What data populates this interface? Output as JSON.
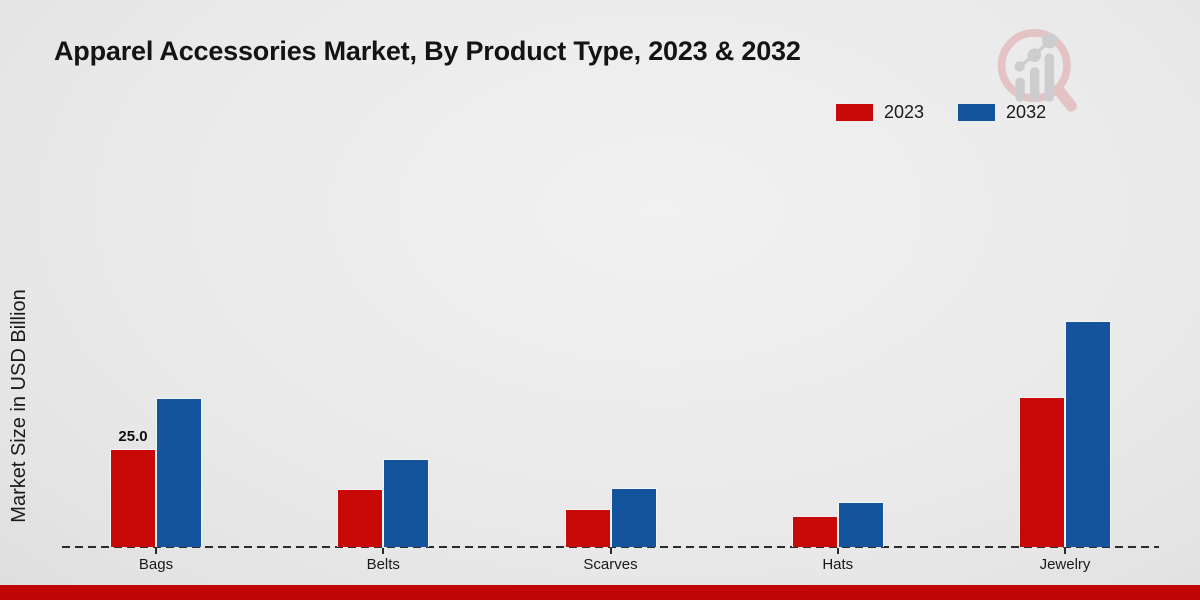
{
  "title": "Apparel Accessories Market, By Product Type, 2023 & 2032",
  "y_axis_label": "Market Size in USD Billion",
  "legend": [
    {
      "label": "2023",
      "color": "#c90808"
    },
    {
      "label": "2032",
      "color": "#14549c"
    }
  ],
  "colors": {
    "series_2023": "#c90808",
    "series_2032": "#14549c",
    "footer_strip": "#c00606",
    "baseline": "#2b2b2b",
    "background": "#eaeaea",
    "logo_pink": "#e3bdbf",
    "logo_gray": "#c8c8cc"
  },
  "logo": {
    "name": "market-research-magnifier-logo"
  },
  "chart_data": {
    "type": "bar",
    "categories": [
      "Bags",
      "Belts",
      "Scarves",
      "Hats",
      "Jewelry"
    ],
    "series": [
      {
        "name": "2023",
        "color": "#c90808",
        "values": [
          25.0,
          14.8,
          9.6,
          8.0,
          38.2
        ],
        "labels": [
          "25.0",
          "",
          "",
          "",
          ""
        ]
      },
      {
        "name": "2032",
        "color": "#14549c",
        "values": [
          38.0,
          22.4,
          15.0,
          11.5,
          57.7
        ],
        "labels": [
          "",
          "",
          "",
          "",
          ""
        ]
      }
    ],
    "title": "Apparel Accessories Market, By Product Type, 2023 & 2032",
    "xlabel": "",
    "ylabel": "Market Size in USD Billion",
    "ylim": [
      0,
      60
    ],
    "grid": false,
    "y_axis_ticks_visible": false,
    "legend_position": "top-right",
    "baseline_style": "dashed",
    "shown_value_labels": [
      {
        "category": "Bags",
        "series": "2023",
        "label": "25.0"
      }
    ]
  }
}
